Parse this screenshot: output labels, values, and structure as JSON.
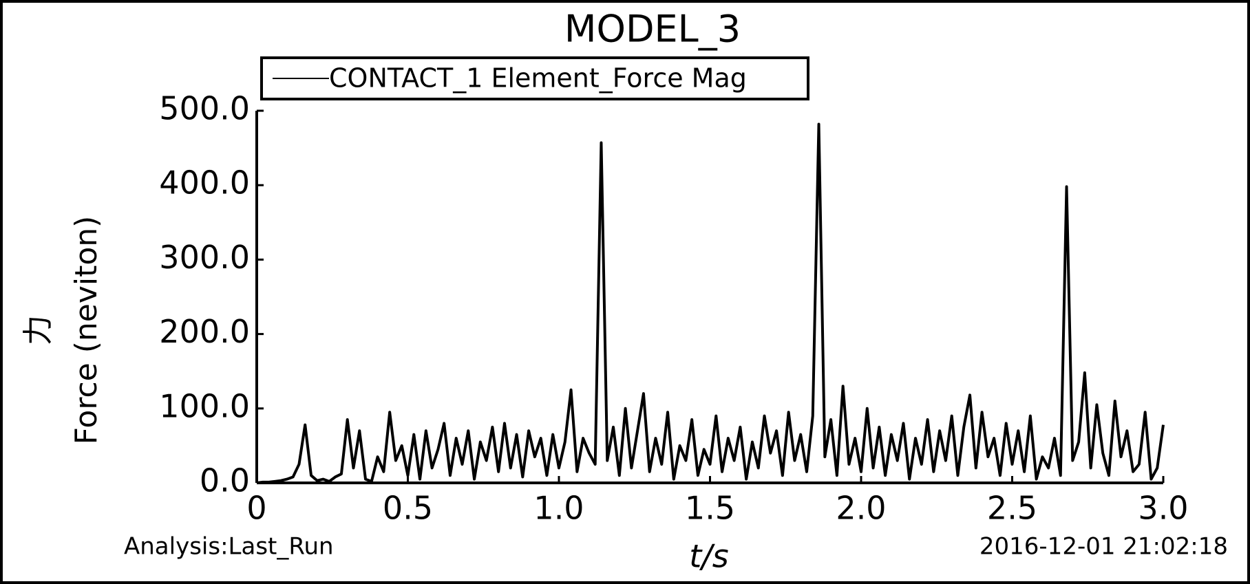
{
  "chart_data": {
    "type": "line",
    "title": "MODEL_3",
    "series": [
      {
        "name": "CONTACT_1 Element_Force Mag",
        "color": "#000000",
        "x": [
          0,
          0.02,
          0.04,
          0.06,
          0.08,
          0.1,
          0.12,
          0.14,
          0.16,
          0.18,
          0.2,
          0.22,
          0.24,
          0.26,
          0.28,
          0.3,
          0.32,
          0.34,
          0.36,
          0.38,
          0.4,
          0.42,
          0.44,
          0.46,
          0.48,
          0.5,
          0.52,
          0.54,
          0.56,
          0.58,
          0.6,
          0.62,
          0.64,
          0.66,
          0.68,
          0.7,
          0.72,
          0.74,
          0.76,
          0.78,
          0.8,
          0.82,
          0.84,
          0.86,
          0.88,
          0.9,
          0.92,
          0.94,
          0.96,
          0.98,
          1.0,
          1.02,
          1.04,
          1.06,
          1.08,
          1.1,
          1.12,
          1.14,
          1.16,
          1.18,
          1.2,
          1.22,
          1.24,
          1.26,
          1.28,
          1.3,
          1.32,
          1.34,
          1.36,
          1.38,
          1.4,
          1.42,
          1.44,
          1.46,
          1.48,
          1.5,
          1.52,
          1.54,
          1.56,
          1.58,
          1.6,
          1.62,
          1.64,
          1.66,
          1.68,
          1.7,
          1.72,
          1.74,
          1.76,
          1.78,
          1.8,
          1.82,
          1.84,
          1.86,
          1.88,
          1.9,
          1.92,
          1.94,
          1.96,
          1.98,
          2.0,
          2.02,
          2.04,
          2.06,
          2.08,
          2.1,
          2.12,
          2.14,
          2.16,
          2.18,
          2.2,
          2.22,
          2.24,
          2.26,
          2.28,
          2.3,
          2.32,
          2.34,
          2.36,
          2.38,
          2.4,
          2.42,
          2.44,
          2.46,
          2.48,
          2.5,
          2.52,
          2.54,
          2.56,
          2.58,
          2.6,
          2.62,
          2.64,
          2.66,
          2.68,
          2.7,
          2.72,
          2.74,
          2.76,
          2.78,
          2.8,
          2.82,
          2.84,
          2.86,
          2.88,
          2.9,
          2.92,
          2.94,
          2.96,
          2.98,
          3.0
        ],
        "values": [
          0,
          1,
          1,
          2,
          3,
          5,
          8,
          25,
          78,
          10,
          3,
          5,
          2,
          8,
          12,
          85,
          20,
          70,
          5,
          2,
          35,
          15,
          95,
          30,
          50,
          10,
          65,
          5,
          70,
          20,
          45,
          80,
          10,
          60,
          25,
          70,
          5,
          55,
          30,
          75,
          15,
          80,
          20,
          65,
          8,
          70,
          35,
          60,
          10,
          65,
          20,
          55,
          125,
          15,
          60,
          40,
          25,
          457,
          30,
          75,
          10,
          100,
          20,
          70,
          120,
          15,
          60,
          25,
          95,
          5,
          50,
          30,
          85,
          10,
          45,
          25,
          90,
          15,
          60,
          30,
          75,
          5,
          55,
          20,
          90,
          40,
          70,
          10,
          95,
          30,
          65,
          15,
          90,
          482,
          35,
          85,
          10,
          130,
          25,
          60,
          15,
          100,
          20,
          75,
          10,
          65,
          30,
          80,
          5,
          60,
          25,
          85,
          15,
          70,
          30,
          90,
          10,
          75,
          118,
          20,
          95,
          35,
          60,
          10,
          80,
          25,
          70,
          15,
          90,
          5,
          35,
          20,
          60,
          10,
          398,
          30,
          55,
          148,
          20,
          105,
          40,
          10,
          110,
          35,
          70,
          15,
          25,
          95,
          5,
          20,
          78
        ]
      }
    ],
    "xlim": [
      0,
      3.0
    ],
    "xticks": [
      0,
      {
        "value": 0.5,
        "label": "0.5"
      },
      {
        "value": 1.0,
        "label": "1.0"
      },
      1.5,
      {
        "value": 2.0,
        "label": "2.0"
      },
      2.5,
      {
        "value": 3.0,
        "label": "3.0"
      }
    ],
    "ylim": [
      0,
      500
    ],
    "yticks": [
      {
        "value": 0,
        "label": "0.0"
      },
      {
        "value": 100,
        "label": "100.0"
      },
      {
        "value": 200,
        "label": "200.0"
      },
      {
        "value": 300,
        "label": "300.0"
      },
      {
        "value": 400,
        "label": "400.0"
      },
      {
        "value": 500,
        "label": "500.0"
      }
    ],
    "ylabel": [
      "力",
      "Force (neviton)"
    ],
    "xlabel": "t/s",
    "footer_left": "Analysis:Last_Run",
    "footer_right": "2016-12-01 21:02:18"
  }
}
